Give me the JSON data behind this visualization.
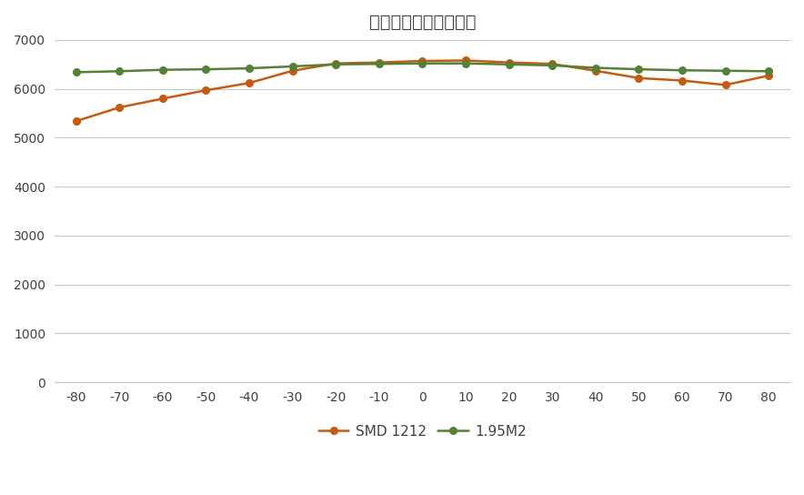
{
  "title": "水平视角下的色温变化",
  "x_values": [
    -80,
    -70,
    -60,
    -50,
    -40,
    -30,
    -20,
    -10,
    0,
    10,
    20,
    30,
    40,
    50,
    60,
    70,
    80
  ],
  "smd1212_values": [
    5340,
    5620,
    5800,
    5970,
    6120,
    6370,
    6520,
    6540,
    6570,
    6580,
    6540,
    6510,
    6370,
    6220,
    6170,
    6080,
    6270
  ],
  "m195_values": [
    6340,
    6360,
    6390,
    6400,
    6420,
    6460,
    6500,
    6510,
    6520,
    6520,
    6500,
    6480,
    6430,
    6400,
    6380,
    6370,
    6360
  ],
  "smd1212_color": "#C55A11",
  "m195_color": "#538135",
  "ylim": [
    0,
    7000
  ],
  "yticks": [
    0,
    1000,
    2000,
    3000,
    4000,
    5000,
    6000,
    7000
  ],
  "background_color": "#FFFFFF",
  "grid_color": "#C8C8C8",
  "title_fontsize": 14,
  "tick_fontsize": 10,
  "legend_labels": [
    "SMD 1212",
    "1.95M2"
  ]
}
